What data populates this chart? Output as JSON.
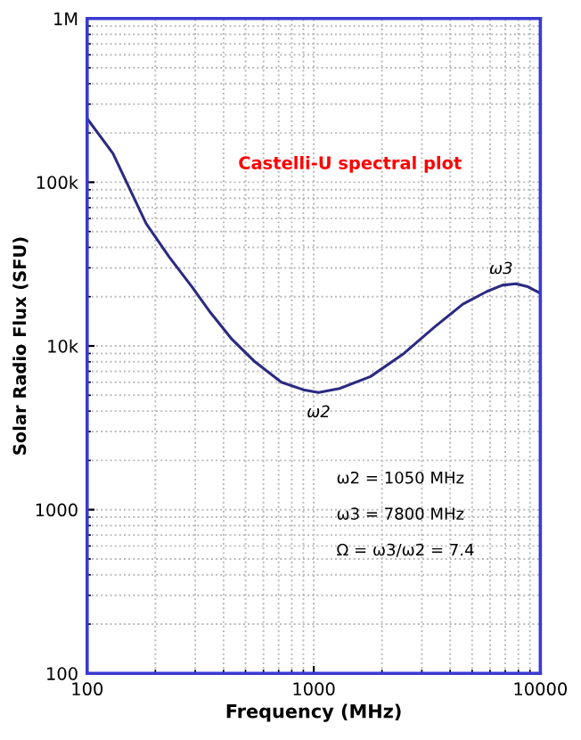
{
  "chart_data": {
    "type": "line",
    "title": "Castelli-U spectral plot",
    "xlabel": "Frequency (MHz)",
    "ylabel": "Solar Radio Flux (SFU)",
    "x": [
      100,
      130,
      182,
      230,
      290,
      350,
      435,
      550,
      720,
      900,
      1050,
      1300,
      1780,
      2500,
      3400,
      4550,
      5800,
      6800,
      7800,
      8800,
      10000
    ],
    "series": [
      {
        "color": "#2b2b82",
        "values": [
          245000,
          150000,
          56000,
          35000,
          23000,
          16000,
          11000,
          8000,
          6000,
          5400,
          5200,
          5500,
          6500,
          9000,
          13000,
          18000,
          21500,
          23500,
          24000,
          23000,
          21000
        ]
      }
    ],
    "log": "xy",
    "xlim": [
      100,
      10000
    ],
    "ylim": [
      100,
      1000000
    ],
    "xticks": [
      100,
      1000,
      10000
    ],
    "yticks": [
      100,
      1000,
      {
        "value": 10000,
        "label": "10k"
      },
      {
        "value": 100000,
        "label": "100k"
      },
      {
        "value": 1000000,
        "label": "1M"
      }
    ],
    "grid": true,
    "marker": "none",
    "line_style": "solid",
    "annotations": [
      {
        "text": "ω2",
        "x": 1050,
        "y": 5200
      },
      {
        "text": "ω3",
        "x": 7800,
        "y": 24000
      },
      "ω2 = 1050 MHz",
      "ω3 = 7800 MHz",
      "Ω = ω3/ω2 = 7.4"
    ]
  }
}
